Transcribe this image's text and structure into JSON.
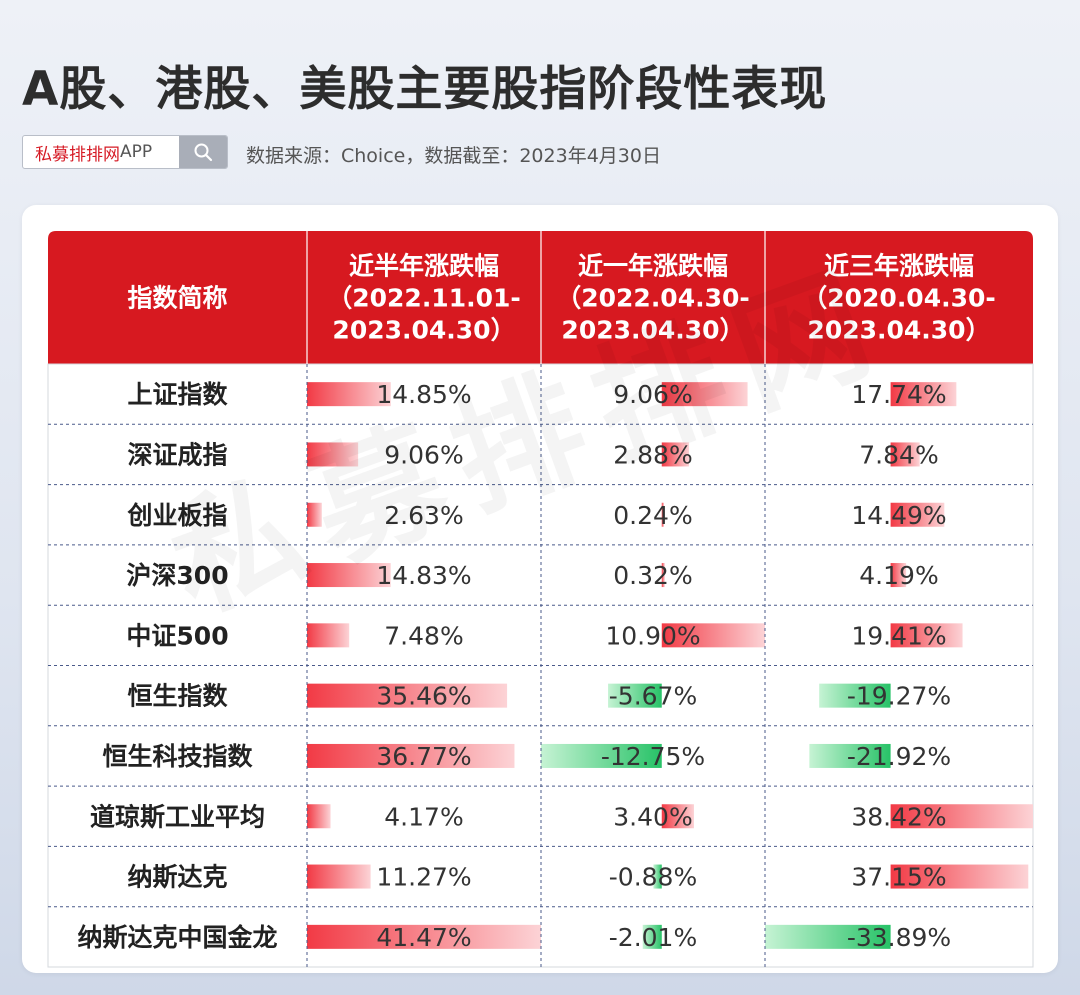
{
  "page": {
    "title": "A股、港股、美股主要股指阶段性表现",
    "search": {
      "brand_red": "私募排排网",
      "brand_suffix": "APP"
    },
    "source": "数据来源：Choice，数据截至：2023年4月30日",
    "watermark": "私募排排网"
  },
  "colors": {
    "header_red": "#d71920",
    "positive": "#f0404a",
    "negative": "#2ecc71"
  },
  "chart_data": {
    "type": "table",
    "columns": [
      {
        "lines": [
          "指数简称"
        ]
      },
      {
        "lines": [
          "近半年涨跌幅",
          "（2022.11.01-",
          "2023.04.30）"
        ]
      },
      {
        "lines": [
          "近一年涨跌幅",
          "（2022.04.30-",
          "2023.04.30）"
        ]
      },
      {
        "lines": [
          "近三年涨跌幅",
          "（2020.04.30-",
          "2023.04.30）"
        ]
      }
    ],
    "rows": [
      {
        "name": "上证指数",
        "values": [
          14.85,
          9.06,
          17.74
        ],
        "labels": [
          "14.85%",
          "9.06%",
          "17.74%"
        ]
      },
      {
        "name": "深证成指",
        "values": [
          9.06,
          2.88,
          7.84
        ],
        "labels": [
          "9.06%",
          "2.88%",
          "7.84%"
        ]
      },
      {
        "name": "创业板指",
        "values": [
          2.63,
          0.24,
          14.49
        ],
        "labels": [
          "2.63%",
          "0.24%",
          "14.49%"
        ]
      },
      {
        "name": "沪深300",
        "values": [
          14.83,
          0.32,
          4.19
        ],
        "labels": [
          "14.83%",
          "0.32%",
          "4.19%"
        ]
      },
      {
        "name": "中证500",
        "values": [
          7.48,
          10.9,
          19.41
        ],
        "labels": [
          "7.48%",
          "10.90%",
          "19.41%"
        ]
      },
      {
        "name": "恒生指数",
        "values": [
          35.46,
          -5.67,
          -19.27
        ],
        "labels": [
          "35.46%",
          "-5.67%",
          "-19.27%"
        ]
      },
      {
        "name": "恒生科技指数",
        "values": [
          36.77,
          -12.75,
          -21.92
        ],
        "labels": [
          "36.77%",
          "-12.75%",
          "-21.92%"
        ]
      },
      {
        "name": "道琼斯工业平均",
        "values": [
          4.17,
          3.4,
          38.42
        ],
        "labels": [
          "4.17%",
          "3.40%",
          "38.42%"
        ]
      },
      {
        "name": "纳斯达克",
        "values": [
          11.27,
          -0.88,
          37.15
        ],
        "labels": [
          "11.27%",
          "-0.88%",
          "37.15%"
        ]
      },
      {
        "name": "纳斯达克中国金龙",
        "values": [
          41.47,
          -2.01,
          -33.89
        ],
        "labels": [
          "41.47%",
          "-2.01%",
          "-33.89%"
        ]
      }
    ]
  }
}
